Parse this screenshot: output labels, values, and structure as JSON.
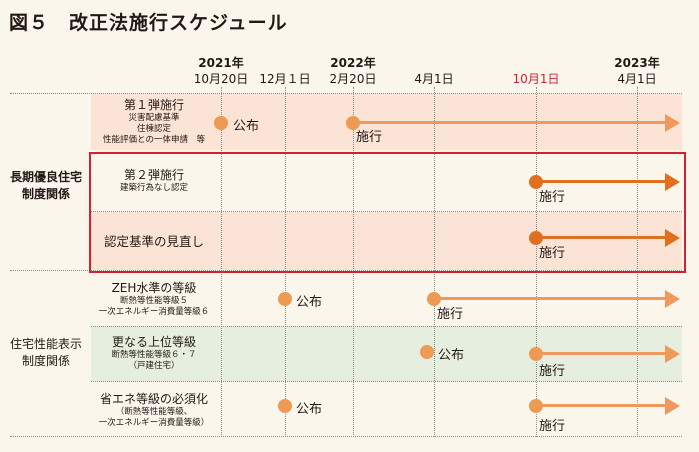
{
  "title": "図５　改正法施行スケジュール",
  "timeline": {
    "years": [
      "2021年",
      "2022年",
      "2023年"
    ],
    "dates": [
      "10月20日",
      "12月１日",
      "2月20日",
      "4月1日",
      "10月1日",
      "4月1日"
    ],
    "highlight_date_color": "#d5202f"
  },
  "categories": {
    "chouki": "長期優良住宅\n制度関係",
    "seinou": "住宅性能表示\n制度関係"
  },
  "rows": {
    "r1": {
      "title": "第１弾施行",
      "sub": "災害配慮基準\n住棟認定\n性能評価との一体申請　等",
      "ev1": "公布",
      "ev2": "施行"
    },
    "r2": {
      "title": "第２弾施行",
      "sub": "建築行為なし認定",
      "ev": "施行"
    },
    "r3": {
      "title": "認定基準の見直し",
      "ev": "施行"
    },
    "r4": {
      "title": "ZEH水準の等級",
      "sub": "断熱等性能等級５\n一次エネルギー消費量等級６",
      "ev1": "公布",
      "ev2": "施行"
    },
    "r5": {
      "title": "更なる上位等級",
      "sub": "断熱等性能等級６・７\n（戸建住宅）",
      "ev1": "公布",
      "ev2": "施行"
    },
    "r6": {
      "title": "省エネ等級の必須化",
      "sub": "（断熱等性能等級、\n一次エネルギー消費量等級）",
      "ev1": "公布",
      "ev2": "施行"
    }
  },
  "colors": {
    "pink_band": "#fbe4d5",
    "green_band": "#e6efdf",
    "dot": "#ec9a54",
    "arrow_light": "#ef9a5c",
    "arrow_dark": "#e0701f",
    "red_box": "#d5202f"
  }
}
